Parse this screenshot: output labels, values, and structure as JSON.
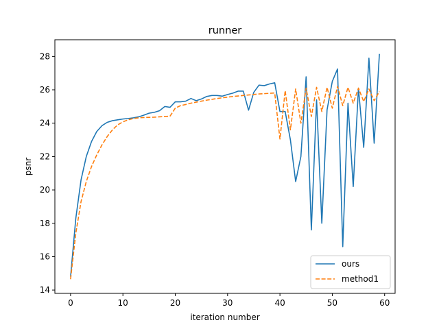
{
  "chart_data": {
    "type": "line",
    "title": "runner",
    "xlabel": "iteration number",
    "ylabel": "psnr",
    "xlim": [
      -3,
      62
    ],
    "ylim": [
      13.8,
      29.0
    ],
    "xticks": [
      0,
      10,
      20,
      30,
      40,
      50,
      60
    ],
    "yticks": [
      14,
      16,
      18,
      20,
      22,
      24,
      26,
      28
    ],
    "grid": false,
    "legend_position": "bottom-right",
    "series": [
      {
        "name": "ours",
        "color": "#1f77b4",
        "style": "solid",
        "x": [
          0,
          1,
          2,
          3,
          4,
          5,
          6,
          7,
          8,
          9,
          10,
          11,
          12,
          13,
          14,
          15,
          16,
          17,
          18,
          19,
          20,
          21,
          22,
          23,
          24,
          25,
          26,
          27,
          28,
          29,
          30,
          31,
          32,
          33,
          34,
          35,
          36,
          37,
          38,
          39,
          40,
          41,
          42,
          43,
          44,
          45,
          46,
          47,
          48,
          49,
          50,
          51,
          52,
          53,
          54,
          55,
          56,
          57,
          58,
          59
        ],
        "values": [
          14.8,
          18.3,
          20.6,
          22.0,
          22.9,
          23.5,
          23.85,
          24.05,
          24.15,
          24.2,
          24.25,
          24.28,
          24.32,
          24.38,
          24.48,
          24.6,
          24.65,
          24.75,
          25.0,
          24.95,
          25.28,
          25.28,
          25.32,
          25.48,
          25.35,
          25.45,
          25.6,
          25.66,
          25.66,
          25.62,
          25.72,
          25.8,
          25.92,
          25.92,
          24.78,
          25.85,
          26.28,
          26.25,
          26.35,
          26.42,
          24.7,
          24.7,
          23.0,
          20.5,
          22.0,
          26.78,
          17.6,
          25.4,
          18.0,
          24.8,
          26.5,
          27.25,
          16.6,
          25.2,
          20.2,
          26.1,
          22.55,
          27.9,
          22.8,
          28.15
        ]
      },
      {
        "name": "method1",
        "color": "#ff7f0e",
        "style": "dashed",
        "x": [
          0,
          1,
          2,
          3,
          4,
          5,
          6,
          7,
          8,
          9,
          10,
          11,
          12,
          13,
          14,
          15,
          16,
          17,
          18,
          19,
          20,
          21,
          22,
          23,
          24,
          25,
          26,
          27,
          28,
          29,
          30,
          31,
          32,
          33,
          34,
          35,
          36,
          37,
          38,
          39,
          40,
          41,
          42,
          43,
          44,
          45,
          46,
          47,
          48,
          49,
          50,
          51,
          52,
          53,
          54,
          55,
          56,
          57,
          58,
          59
        ],
        "values": [
          14.65,
          17.4,
          19.3,
          20.5,
          21.4,
          22.1,
          22.7,
          23.2,
          23.6,
          23.9,
          24.08,
          24.2,
          24.28,
          24.32,
          24.34,
          24.35,
          24.36,
          24.38,
          24.4,
          24.42,
          24.9,
          25.05,
          25.12,
          25.2,
          25.26,
          25.32,
          25.38,
          25.43,
          25.48,
          25.52,
          25.56,
          25.6,
          25.63,
          25.66,
          25.69,
          25.72,
          25.75,
          25.77,
          25.79,
          25.81,
          23.05,
          25.95,
          23.6,
          26.05,
          24.0,
          26.1,
          24.4,
          26.15,
          24.7,
          26.15,
          24.9,
          26.2,
          25.05,
          26.15,
          25.2,
          26.1,
          25.3,
          26.05,
          25.35,
          25.9
        ]
      }
    ]
  }
}
